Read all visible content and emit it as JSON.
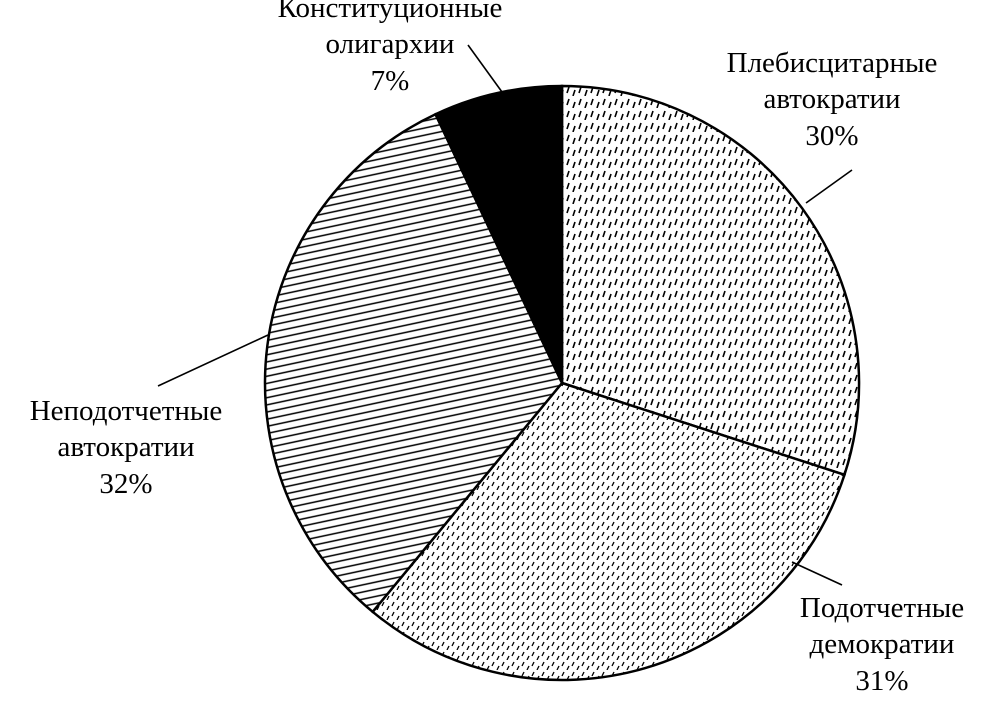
{
  "chart_data": {
    "type": "pie",
    "categories": [
      "Плебисцитарные автократии",
      "Подотчетные демократии",
      "Неподотчетные автократии",
      "Конституционные олигархии"
    ],
    "values": [
      30,
      31,
      32,
      7
    ],
    "value_labels": [
      "30%",
      "31%",
      "32%",
      "7%"
    ]
  }
}
